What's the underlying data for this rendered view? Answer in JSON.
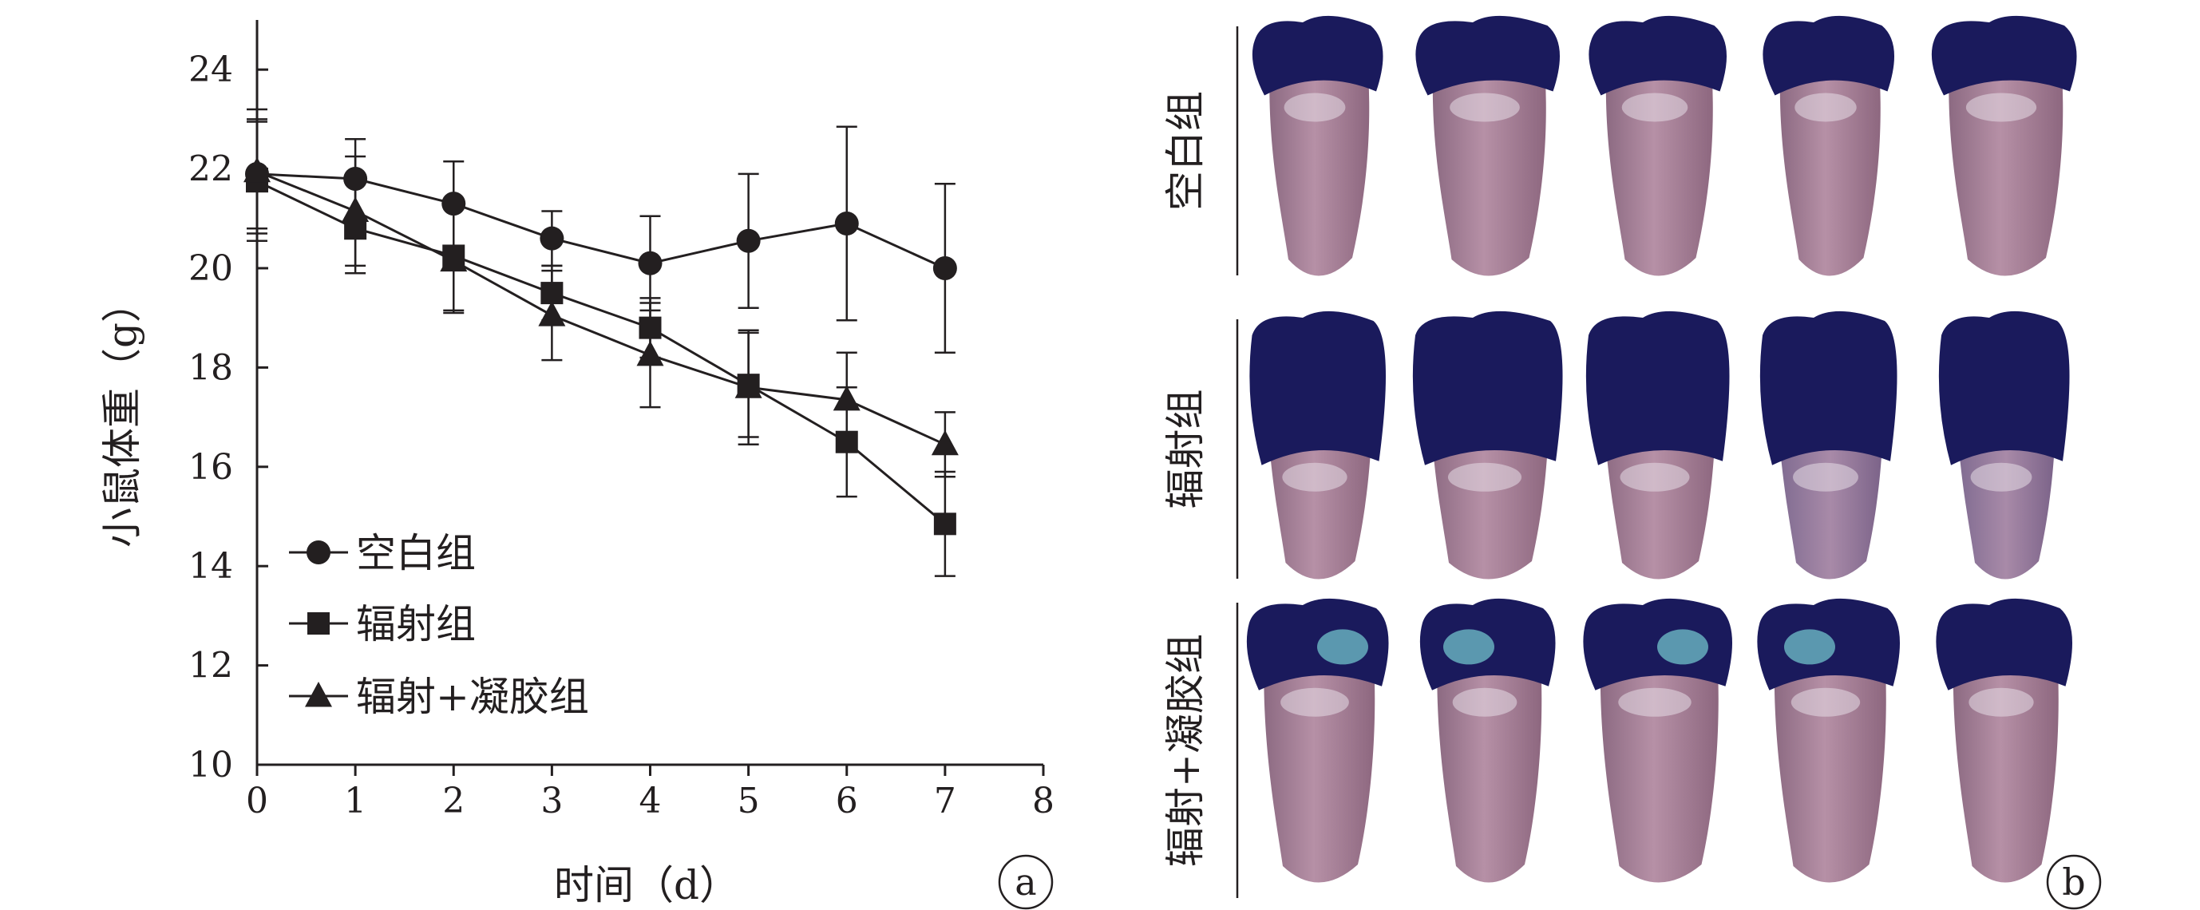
{
  "chart_data": {
    "type": "line",
    "xlabel": "时间（d）",
    "ylabel": "小鼠体重（g）",
    "xlim": [
      0,
      8
    ],
    "ylim": [
      10,
      25
    ],
    "xticks": [
      0,
      1,
      2,
      3,
      4,
      5,
      6,
      7,
      8
    ],
    "yticks": [
      10,
      12,
      14,
      16,
      18,
      20,
      22,
      24
    ],
    "x": [
      0,
      1,
      2,
      3,
      4,
      5,
      6,
      7
    ],
    "grid": false,
    "legend_position": "lower-left",
    "panel_label": "a",
    "series": [
      {
        "name": "空白组",
        "marker": "circle",
        "values": [
          21.9,
          21.8,
          21.3,
          20.6,
          20.1,
          20.55,
          20.9,
          20.0
        ],
        "errors": [
          1.1,
          0.8,
          0.85,
          0.55,
          0.95,
          1.35,
          1.95,
          1.7
        ]
      },
      {
        "name": "辐射组",
        "marker": "square",
        "values": [
          21.75,
          20.8,
          20.25,
          19.5,
          18.8,
          17.65,
          16.5,
          14.85
        ],
        "errors": [
          1.2,
          0.9,
          1.1,
          0.55,
          0.6,
          1.05,
          1.1,
          1.05
        ]
      },
      {
        "name": "辐射+凝胶组",
        "marker": "triangle",
        "values": [
          21.95,
          21.15,
          20.15,
          19.05,
          18.25,
          17.6,
          17.35,
          16.45
        ],
        "errors": [
          1.25,
          1.1,
          1.05,
          0.9,
          1.05,
          1.15,
          0.95,
          0.65
        ]
      }
    ]
  },
  "photo_panel": {
    "panel_label": "b",
    "rows": [
      {
        "label": "空白组",
        "stain_level": 0.15,
        "specimens": 5
      },
      {
        "label": "辐射组",
        "stain_level": 0.42,
        "specimens": 5
      },
      {
        "label": "辐射+凝胶组",
        "stain_level": 0.18,
        "specimens": 5
      }
    ],
    "colors": {
      "tissue": "#a98096",
      "stain": "#1a1a5c",
      "cyan_stain": "#6bb8c4"
    }
  }
}
